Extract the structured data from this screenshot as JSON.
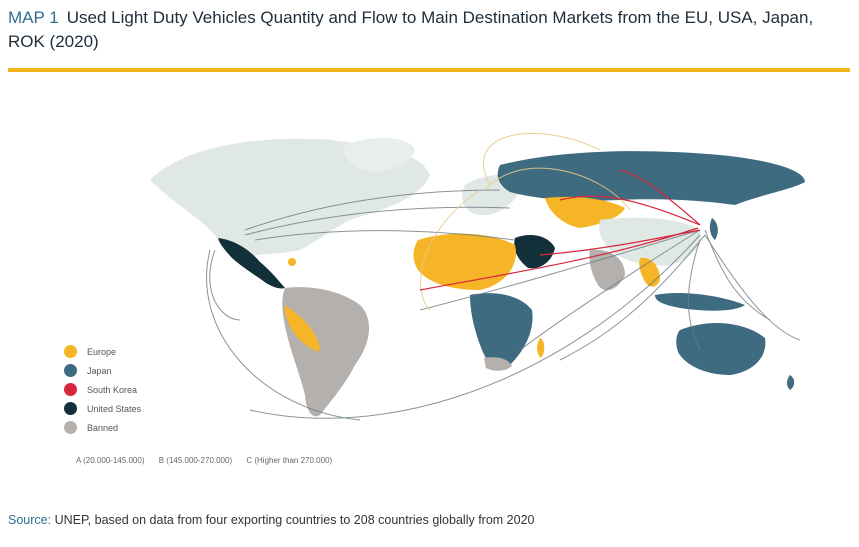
{
  "title": {
    "map_number": "MAP 1",
    "text_line1": "Used Light Duty Vehicles Quantity and Flow to Main Destination Markets from the EU, USA, Japan,",
    "text_line2": "ROK (2020)"
  },
  "legend": [
    {
      "label": "Europe",
      "color": "#f5b526"
    },
    {
      "label": "Japan",
      "color": "#3f6b80"
    },
    {
      "label": "South Korea",
      "color": "#d7263d"
    },
    {
      "label": "United States",
      "color": "#12303a"
    },
    {
      "label": "Banned",
      "color": "#b3b0ae"
    }
  ],
  "scale": {
    "a": "A (20.000-145.000)",
    "b": "B (145.000-270.000)",
    "c": "C (Higher than 270.000)"
  },
  "source": {
    "label": "Source:",
    "text": " UNEP, based on data from four exporting countries to 208 countries globally from 2020"
  },
  "colors": {
    "land_default": "#dfe8e4",
    "europe": "#f5b526",
    "japan": "#3f6b80",
    "south_korea": "#d7263d",
    "united_states": "#12303a",
    "banned": "#b3b0ae",
    "accent_rule": "#f2b51a"
  }
}
